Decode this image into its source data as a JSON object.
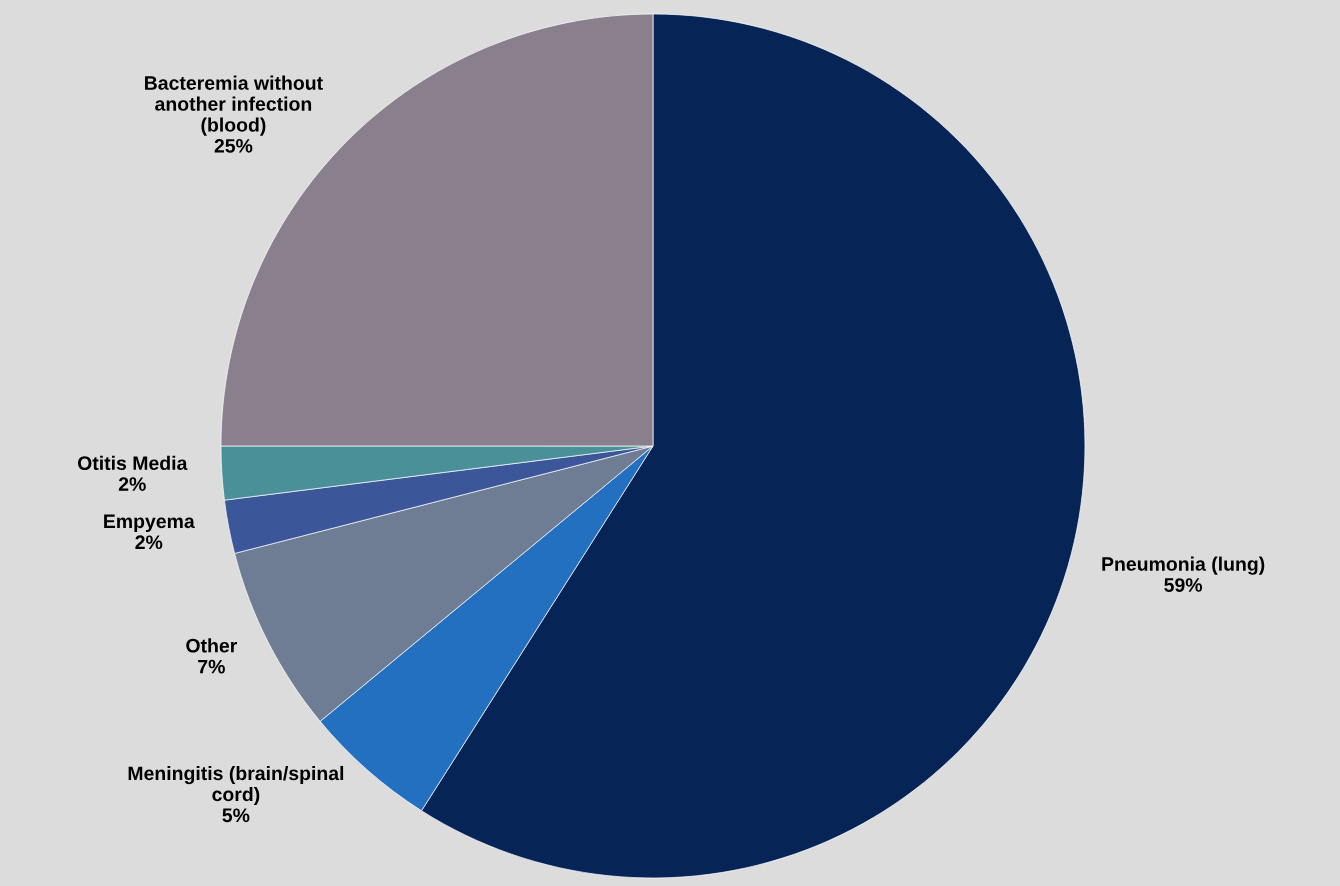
{
  "chart_data": {
    "type": "pie",
    "categories": [
      "Pneumonia (lung)",
      "Meningitis (brain/spinal\ncord)",
      "Other",
      "Empyema",
      "Otitis Media",
      "Bacteremia without\nanother infection\n(blood)"
    ],
    "values": [
      59,
      5,
      7,
      2,
      2,
      25
    ],
    "value_labels": [
      "59%",
      "5%",
      "7%",
      "2%",
      "2%",
      "25%"
    ],
    "colors": [
      "#062456",
      "#2470c0",
      "#6e7d94",
      "#3c569a",
      "#4a9098",
      "#8a7f8d"
    ],
    "legend": false
  }
}
